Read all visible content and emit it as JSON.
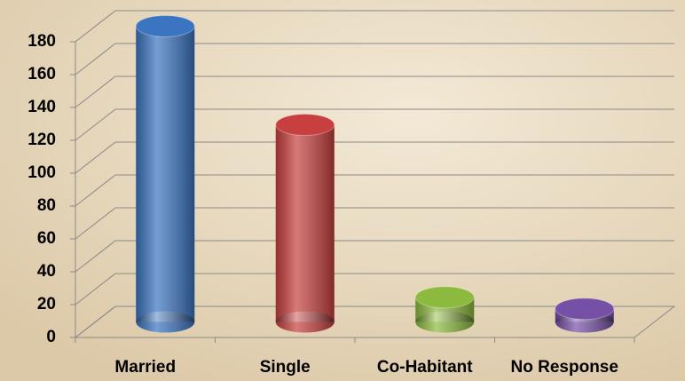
{
  "chart_data": {
    "type": "bar3d",
    "categories": [
      "Married",
      "Single",
      "Co-Habitant",
      "No Response"
    ],
    "series": [
      {
        "colors": [
          "#3b74c0",
          "#c7403f",
          "#8cba3e",
          "#7650a6"
        ],
        "values": [
          180,
          120,
          15,
          8
        ]
      }
    ],
    "ylim": [
      0,
      180
    ],
    "yticks": [
      0,
      20,
      40,
      60,
      80,
      100,
      120,
      140,
      160,
      180
    ],
    "grid": true
  }
}
